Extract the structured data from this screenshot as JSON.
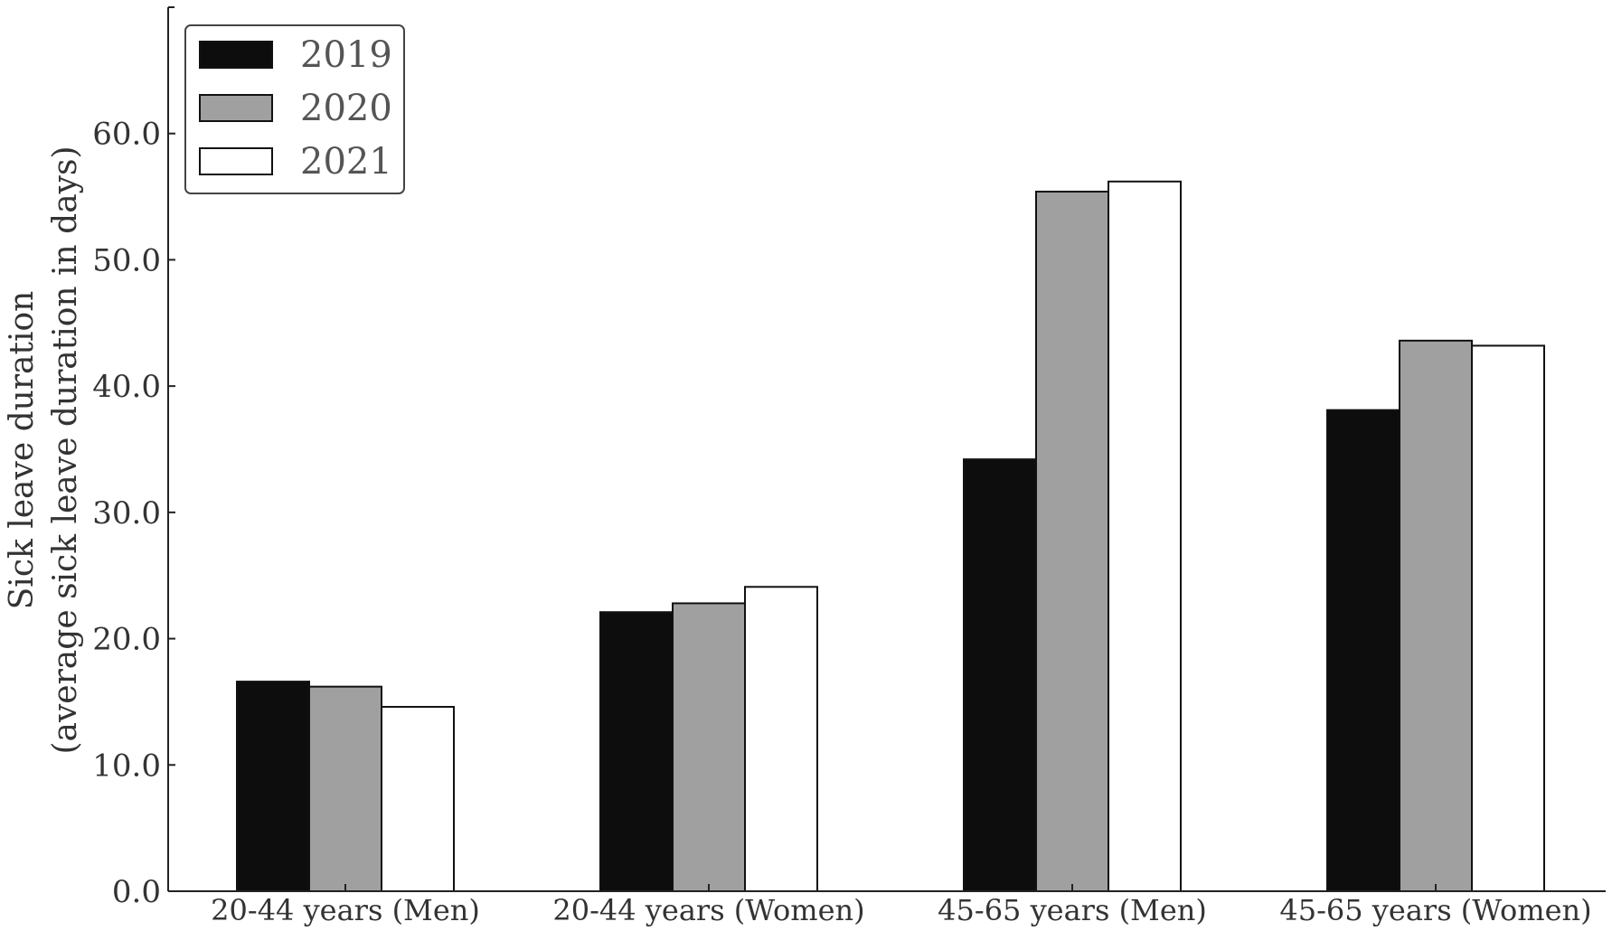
{
  "chart_data": {
    "type": "bar",
    "title": "",
    "xlabel": "",
    "ylabel_lines": [
      "Sick leave duration",
      "(average sick leave duration in days)"
    ],
    "categories": [
      "20-44 years (Men)",
      "20-44 years (Women)",
      "45-65 years (Men)",
      "45-65 years (Women)"
    ],
    "series": [
      {
        "name": "2019",
        "color": "#0d0d0d",
        "values": [
          16.6,
          22.1,
          34.2,
          38.1
        ]
      },
      {
        "name": "2020",
        "color": "#a0a0a0",
        "values": [
          16.2,
          22.8,
          55.4,
          43.6
        ]
      },
      {
        "name": "2021",
        "color": "#ffffff",
        "values": [
          14.6,
          24.1,
          56.2,
          43.2
        ]
      }
    ],
    "ylim": [
      0,
      70
    ],
    "yticks": [
      0,
      10,
      20,
      30,
      40,
      50,
      60
    ],
    "ytick_labels": [
      "0.0",
      "10.0",
      "20.0",
      "30.0",
      "40.0",
      "50.0",
      "60.0"
    ],
    "grid": false,
    "legend_position": "top-left"
  }
}
